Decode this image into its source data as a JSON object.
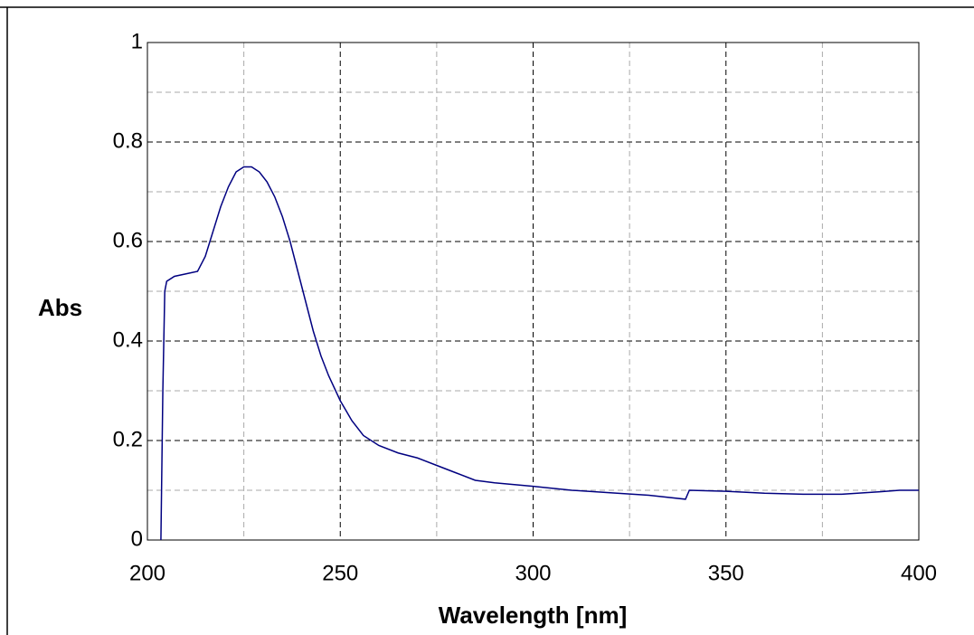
{
  "chart_data": {
    "type": "line",
    "xlabel": "Wavelength [nm]",
    "ylabel": "Abs",
    "color": "#000080",
    "x": [
      203.5,
      204,
      204.5,
      205,
      207,
      210,
      213,
      215,
      217,
      219,
      221,
      223,
      225,
      227,
      229,
      231,
      233,
      235,
      237,
      239,
      241,
      243,
      245,
      247,
      250,
      253,
      256,
      260,
      265,
      270,
      275,
      280,
      285,
      290,
      300,
      310,
      320,
      330,
      339.5,
      340.5,
      350,
      360,
      370,
      380,
      390,
      395,
      400
    ],
    "values": [
      0,
      0.3,
      0.5,
      0.52,
      0.53,
      0.535,
      0.54,
      0.57,
      0.62,
      0.67,
      0.71,
      0.74,
      0.75,
      0.75,
      0.74,
      0.72,
      0.69,
      0.65,
      0.6,
      0.54,
      0.48,
      0.42,
      0.37,
      0.33,
      0.28,
      0.24,
      0.21,
      0.19,
      0.175,
      0.165,
      0.15,
      0.135,
      0.12,
      0.115,
      0.108,
      0.1,
      0.095,
      0.09,
      0.082,
      0.1,
      0.098,
      0.094,
      0.092,
      0.092,
      0.097,
      0.1,
      0.1
    ],
    "xlim": [
      200,
      400
    ],
    "ylim": [
      0,
      1
    ],
    "xticks": [
      200,
      250,
      300,
      350,
      400
    ],
    "yticks": [
      0,
      0.2,
      0.4,
      0.6,
      0.8,
      1
    ],
    "xminor": [
      225,
      275,
      325,
      375
    ],
    "yminor": [
      0.1,
      0.3,
      0.5,
      0.7,
      0.9
    ],
    "grid": true
  }
}
